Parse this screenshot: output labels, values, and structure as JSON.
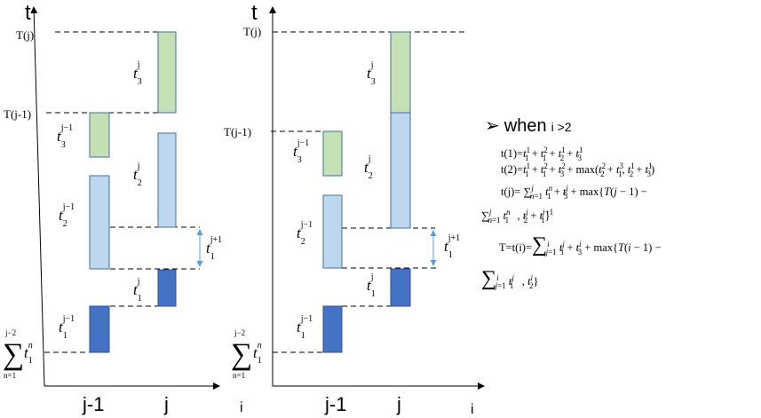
{
  "colors": {
    "dark_blue": "#4472C4",
    "light_blue": "#BDD7EE",
    "light_green": "#C5E0B4",
    "arrow_blue": "#5B9BD5"
  },
  "left_panel": {
    "y_axis": "t",
    "x_axis": "i",
    "x_ticks": [
      "j-1",
      "j"
    ],
    "labels": {
      "Tj": "T(j)",
      "Tj1": "T(j-1)",
      "t3j": {
        "base": "t",
        "sup": "j",
        "sub": "3"
      },
      "t3j1": {
        "base": "t",
        "sup": "j−1",
        "sub": "3"
      },
      "t2j": {
        "base": "t",
        "sup": "j",
        "sub": "2"
      },
      "t2j1": {
        "base": "t",
        "sup": "j−1",
        "sub": "2"
      },
      "t1jp1": {
        "base": "t",
        "sup": "j+1",
        "sub": "1"
      },
      "t1j": {
        "base": "t",
        "sup": "j",
        "sub": "1"
      },
      "t1j1": {
        "base": "t",
        "sup": "j−1",
        "sub": "1"
      },
      "sum": {
        "sigma": "∑",
        "upper": "j−2",
        "lower": "n=1",
        "base": "t",
        "sup": "n",
        "sub": "1"
      }
    }
  },
  "right_panel": {
    "y_axis": "t",
    "x_axis": "i",
    "x_ticks": [
      "j-1",
      "j"
    ],
    "labels": {
      "Tj": "T(j)",
      "Tj1": "T(j-1)",
      "t3j": {
        "base": "t",
        "sup": "j",
        "sub": "3"
      },
      "t3j1": {
        "base": "t",
        "sup": "j−1",
        "sub": "3"
      },
      "t2j": {
        "base": "t",
        "sup": "j",
        "sub": "2"
      },
      "t2j1": {
        "base": "t",
        "sup": "j−1",
        "sub": "2"
      },
      "t1jp1": {
        "base": "t",
        "sup": "j+1",
        "sub": "1"
      },
      "t1j": {
        "base": "t",
        "sup": "j",
        "sub": "1"
      },
      "t1j1": {
        "base": "t",
        "sup": "j−1",
        "sub": "1"
      },
      "sum": {
        "sigma": "∑",
        "upper": "j−2",
        "lower": "n=1",
        "base": "t",
        "sup": "n",
        "sub": "1"
      }
    }
  },
  "formulas": {
    "bullet": "➢",
    "heading_word": "when",
    "heading_cond": "i >2",
    "t1_lhs": "t(1)=",
    "t2_lhs": "t(2)=",
    "tj_lhs": "t(j)=",
    "T_lhs": "T=t(i)="
  }
}
